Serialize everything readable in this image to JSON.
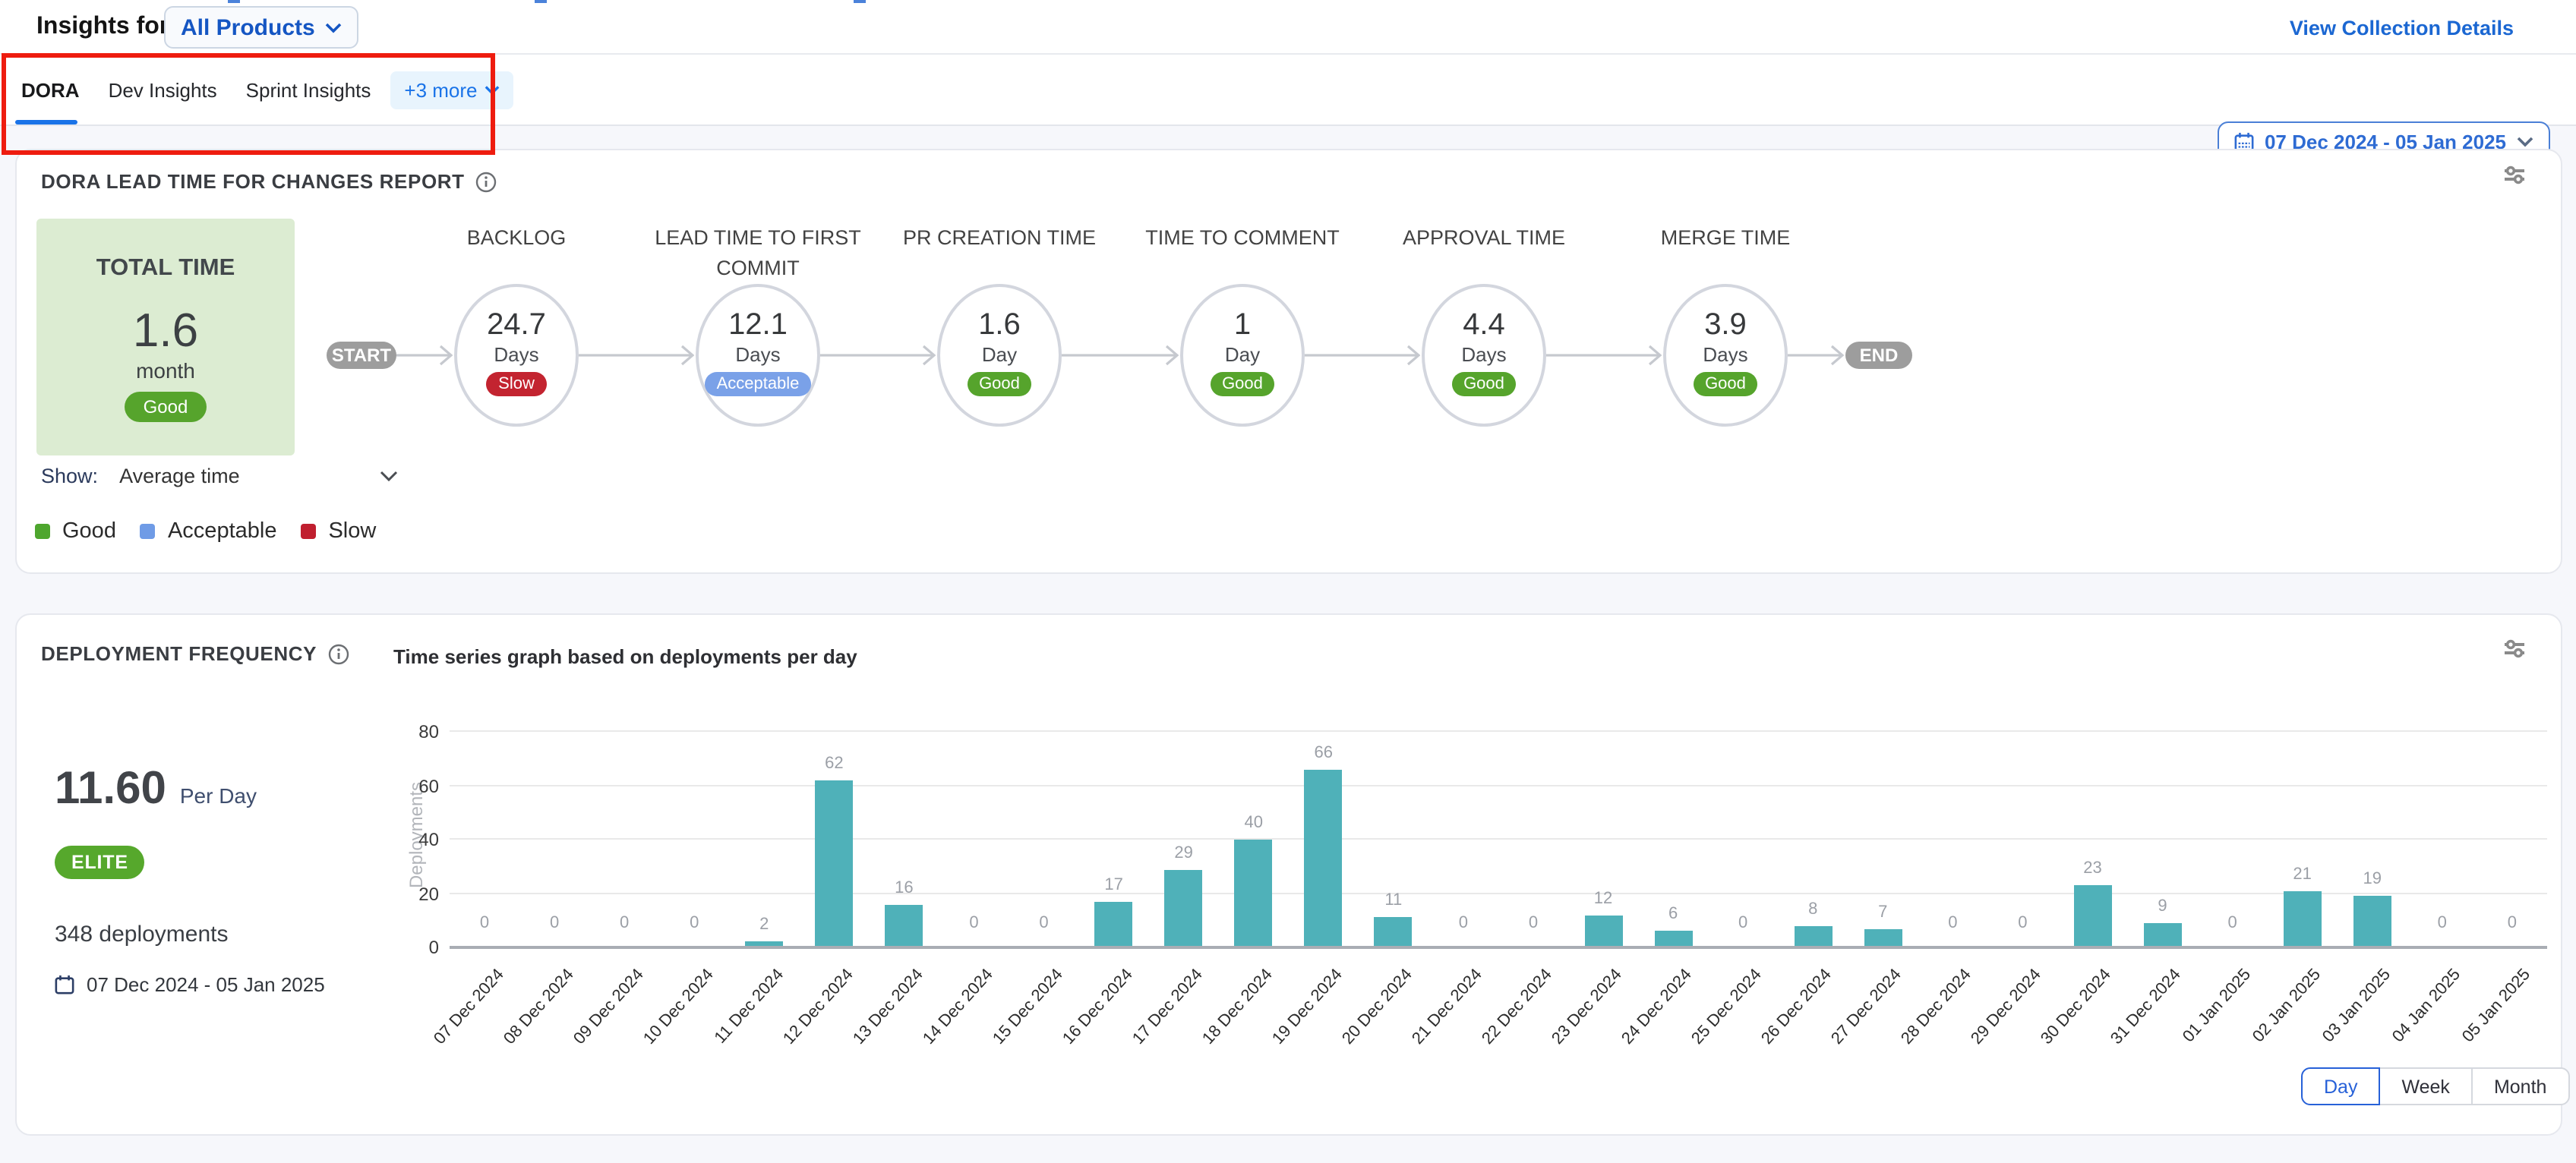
{
  "header": {
    "title": "Insights for",
    "product_selector": "All Products",
    "view_collection_link": "View Collection Details"
  },
  "tabs": {
    "items": [
      {
        "label": "DORA",
        "active": true
      },
      {
        "label": "Dev Insights",
        "active": false
      },
      {
        "label": "Sprint Insights",
        "active": false
      }
    ],
    "more_label": "+3 more",
    "date_range": "07 Dec 2024 - 05 Jan 2025"
  },
  "rating_colors": {
    "Good": "#56a42c",
    "Acceptable": "#7aa1e8",
    "Slow": "#c32430"
  },
  "lead_time": {
    "title": "DORA LEAD TIME FOR CHANGES REPORT",
    "total": {
      "label": "TOTAL TIME",
      "value": "1.6",
      "unit": "month",
      "rating": "Good"
    },
    "start_label": "START",
    "end_label": "END",
    "stages": [
      {
        "label": "BACKLOG",
        "value": "24.7",
        "unit": "Days",
        "rating": "Slow"
      },
      {
        "label": "LEAD TIME TO FIRST COMMIT",
        "value": "12.1",
        "unit": "Days",
        "rating": "Acceptable"
      },
      {
        "label": "PR CREATION TIME",
        "value": "1.6",
        "unit": "Day",
        "rating": "Good"
      },
      {
        "label": "TIME TO COMMENT",
        "value": "1",
        "unit": "Day",
        "rating": "Good"
      },
      {
        "label": "APPROVAL TIME",
        "value": "4.4",
        "unit": "Days",
        "rating": "Good"
      },
      {
        "label": "MERGE TIME",
        "value": "3.9",
        "unit": "Days",
        "rating": "Good"
      }
    ],
    "show_label": "Show:",
    "show_value": "Average time",
    "legend": [
      {
        "label": "Good",
        "color": "#4ea62e"
      },
      {
        "label": "Acceptable",
        "color": "#6f9be6"
      },
      {
        "label": "Slow",
        "color": "#c01f2f"
      }
    ]
  },
  "deployment": {
    "title": "DEPLOYMENT FREQUENCY",
    "rate_value": "11.60",
    "rate_unit": "Per Day",
    "badge": "ELITE",
    "total_label": "348 deployments",
    "date_range": "07 Dec 2024 - 05 Jan 2025",
    "granularity_options": [
      "Day",
      "Week",
      "Month"
    ],
    "active_granularity": "Day"
  },
  "chart_data": {
    "type": "bar",
    "title": "Time series graph based on deployments per day",
    "xlabel": "",
    "ylabel": "Deployments",
    "ylim": [
      0,
      80
    ],
    "yticks": [
      0,
      20,
      40,
      60,
      80
    ],
    "grid": true,
    "bar_color": "#4fb1b9",
    "categories": [
      "07 Dec 2024",
      "08 Dec 2024",
      "09 Dec 2024",
      "10 Dec 2024",
      "11 Dec 2024",
      "12 Dec 2024",
      "13 Dec 2024",
      "14 Dec 2024",
      "15 Dec 2024",
      "16 Dec 2024",
      "17 Dec 2024",
      "18 Dec 2024",
      "19 Dec 2024",
      "20 Dec 2024",
      "21 Dec 2024",
      "22 Dec 2024",
      "23 Dec 2024",
      "24 Dec 2024",
      "25 Dec 2024",
      "26 Dec 2024",
      "27 Dec 2024",
      "28 Dec 2024",
      "29 Dec 2024",
      "30 Dec 2024",
      "31 Dec 2024",
      "01 Jan 2025",
      "02 Jan 2025",
      "03 Jan 2025",
      "04 Jan 2025",
      "05 Jan 2025"
    ],
    "values": [
      0,
      0,
      0,
      0,
      2,
      62,
      16,
      0,
      0,
      17,
      29,
      40,
      66,
      11,
      0,
      0,
      12,
      6,
      0,
      8,
      7,
      0,
      0,
      23,
      9,
      0,
      21,
      19,
      0,
      0
    ]
  }
}
